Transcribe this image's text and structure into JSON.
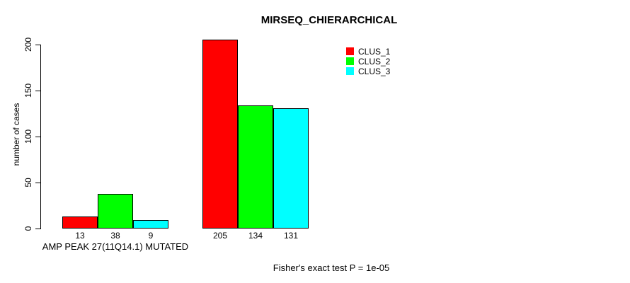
{
  "chart_data": {
    "type": "bar",
    "title": "MIRSEQ_CHIERARCHICAL",
    "ylabel": "number of cases",
    "ylim": [
      0,
      200
    ],
    "yticks": [
      0,
      50,
      100,
      150,
      200
    ],
    "grid": false,
    "legend_position": "top-right",
    "series": [
      {
        "name": "CLUS_1",
        "color": "#FF0000",
        "values": [
          13,
          205
        ]
      },
      {
        "name": "CLUS_2",
        "color": "#00FF00",
        "values": [
          38,
          134
        ]
      },
      {
        "name": "CLUS_3",
        "color": "#00FFFF",
        "values": [
          9,
          131
        ]
      }
    ],
    "groups": [
      {
        "label": "AMP PEAK 27(11Q14.1) MUTATED"
      },
      {
        "label": ""
      }
    ],
    "bar_value_labels_shown": true,
    "annotation": "Fisher's exact test P = 1e-05"
  }
}
